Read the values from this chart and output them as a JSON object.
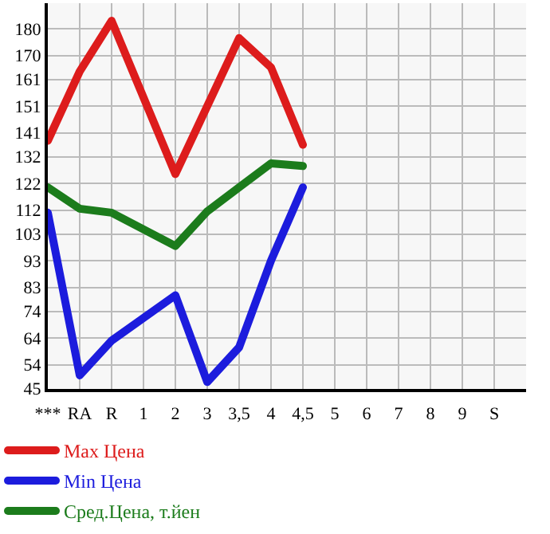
{
  "chart_data": {
    "type": "line",
    "categories": [
      "***",
      "RA",
      "R",
      "1",
      "2",
      "3",
      "3,5",
      "4",
      "4,5",
      "5",
      "6",
      "7",
      "8",
      "9",
      "S"
    ],
    "series": [
      {
        "name": "Max Цена",
        "color": "#dd1c1c",
        "values": [
          138,
          164,
          183,
          null,
          125.5,
          151,
          176.5,
          165.5,
          136.5,
          null,
          null,
          null,
          null,
          null,
          null
        ]
      },
      {
        "name": "Min Цена",
        "color": "#1c1cdd",
        "values": [
          111,
          50,
          63,
          null,
          80,
          47.5,
          60.5,
          93,
          120.5,
          null,
          null,
          null,
          null,
          null,
          null
        ]
      },
      {
        "name": "Сред.Цена, т.йен",
        "color": "#1c7c1c",
        "values": [
          120.5,
          112.5,
          111,
          null,
          98.5,
          111.5,
          120.5,
          129.5,
          128.5,
          null,
          null,
          null,
          null,
          null,
          null
        ]
      }
    ],
    "ylim": [
      45,
      189.6
    ],
    "yticks": [
      45,
      54,
      64,
      74,
      83,
      93,
      103,
      112,
      122,
      132,
      141,
      151,
      161,
      170,
      180
    ],
    "grid": true,
    "legend": "bottom",
    "marker": "none",
    "line_style": "solid"
  }
}
